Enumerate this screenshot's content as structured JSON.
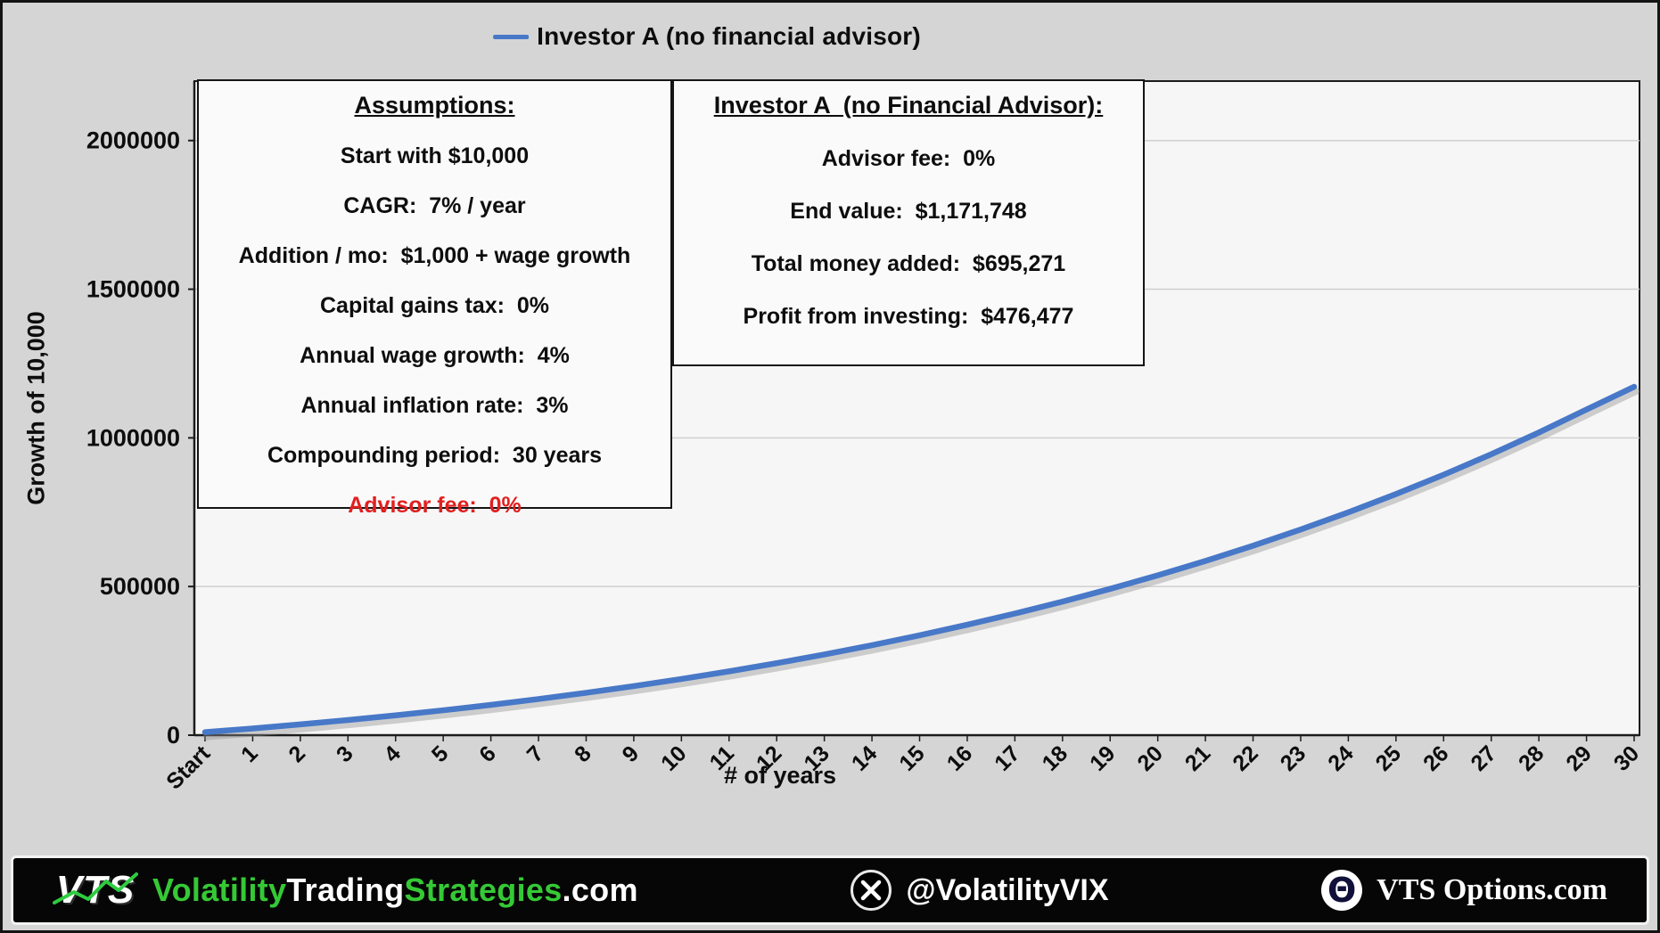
{
  "legend": {
    "label": "Investor A  (no financial advisor)",
    "line_color": "#4878c8"
  },
  "chart_data": {
    "type": "line",
    "title": "",
    "xlabel": "# of years",
    "ylabel": "Growth of 10,000",
    "x_tick_labels": [
      "Start",
      "1",
      "2",
      "3",
      "4",
      "5",
      "6",
      "7",
      "8",
      "9",
      "10",
      "11",
      "12",
      "13",
      "14",
      "15",
      "16",
      "17",
      "18",
      "19",
      "20",
      "21",
      "22",
      "23",
      "24",
      "25",
      "26",
      "27",
      "28",
      "29",
      "30"
    ],
    "y_ticks": [
      0,
      500000,
      1000000,
      1500000,
      2000000
    ],
    "ylim": [
      0,
      2200000
    ],
    "grid": "horizontal",
    "legend_position": "top-center",
    "series": [
      {
        "name": "Investor A  (no financial advisor)",
        "color": "#4878c8",
        "values": [
          10000,
          22600,
          36300,
          51000,
          66800,
          83700,
          102000,
          121600,
          142500,
          165000,
          189000,
          214700,
          242100,
          271400,
          302600,
          335900,
          371400,
          409100,
          449300,
          492100,
          537600,
          585900,
          637200,
          691700,
          749500,
          810900,
          875900,
          944900,
          1018000,
          1095400,
          1171748
        ]
      }
    ]
  },
  "boxes": {
    "assumptions": {
      "title": "Assumptions:",
      "lines": [
        "Start with $10,000",
        "CAGR:  7% / year",
        "Addition / mo:  $1,000 + wage growth",
        "Capital gains tax:  0%",
        "Annual wage growth:  4%",
        "Annual inflation rate:  3%",
        "Compounding period:  30 years"
      ],
      "highlight_line": "Advisor fee:  0%",
      "highlight_color": "#e21f1f"
    },
    "investor": {
      "title": "Investor A  (no Financial Advisor):",
      "lines": [
        "Advisor fee:  0%",
        "End value:  $1,171,748",
        "Total money added:  $695,271",
        "Profit from investing:  $476,477"
      ]
    }
  },
  "footer": {
    "logo_text": "VTS",
    "logo_accent_color": "#2ecc40",
    "brand_segments": [
      {
        "text": "Volatility",
        "color": "#35c935"
      },
      {
        "text": "Trading",
        "color": "#ffffff"
      },
      {
        "text": "Strategies",
        "color": "#35c935"
      },
      {
        "text": ".com",
        "color": "#ffffff"
      }
    ],
    "twitter_handle": "@VolatilityVIX",
    "theta_symbol": "Θ",
    "right_brand": "VTS Options.com"
  }
}
